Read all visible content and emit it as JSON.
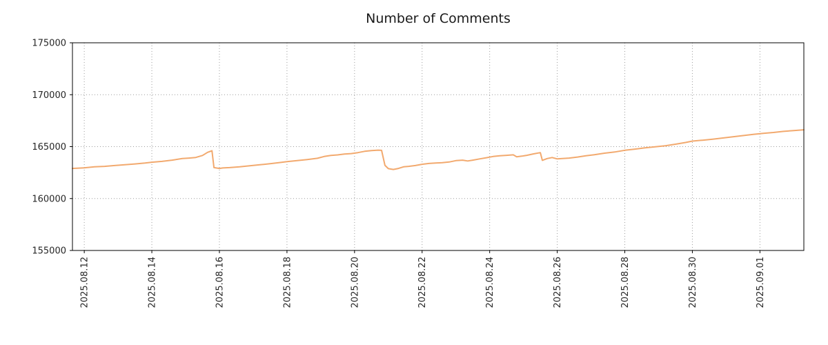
{
  "chart_data": {
    "type": "line",
    "title": "Number of Comments",
    "xlabel": "",
    "ylabel": "",
    "grid": true,
    "legend": "none",
    "line_color": "#f2a96e",
    "line_width": 2,
    "xlim": [
      -0.35,
      21.3
    ],
    "ylim": [
      155000,
      175000
    ],
    "y_ticks": [
      {
        "value": 155000,
        "label": "155000"
      },
      {
        "value": 160000,
        "label": "160000"
      },
      {
        "value": 165000,
        "label": "165000"
      },
      {
        "value": 170000,
        "label": "170000"
      },
      {
        "value": 175000,
        "label": "175000"
      }
    ],
    "x_ticks": [
      {
        "pos": 0,
        "label": "2025.08.12"
      },
      {
        "pos": 2,
        "label": "2025.08.14"
      },
      {
        "pos": 4,
        "label": "2025.08.16"
      },
      {
        "pos": 6,
        "label": "2025.08.18"
      },
      {
        "pos": 8,
        "label": "2025.08.20"
      },
      {
        "pos": 10,
        "label": "2025.08.22"
      },
      {
        "pos": 12,
        "label": "2025.08.24"
      },
      {
        "pos": 14,
        "label": "2025.08.26"
      },
      {
        "pos": 16,
        "label": "2025.08.28"
      },
      {
        "pos": 18,
        "label": "2025.08.30"
      },
      {
        "pos": 20,
        "label": "2025.09.01"
      }
    ],
    "series": [
      {
        "name": "comments",
        "points": [
          [
            -0.35,
            162900
          ],
          [
            0,
            162960
          ],
          [
            0.3,
            163050
          ],
          [
            0.6,
            163100
          ],
          [
            0.9,
            163180
          ],
          [
            1.2,
            163250
          ],
          [
            1.5,
            163330
          ],
          [
            1.8,
            163420
          ],
          [
            2.0,
            163500
          ],
          [
            2.3,
            163580
          ],
          [
            2.6,
            163700
          ],
          [
            2.9,
            163850
          ],
          [
            3.1,
            163900
          ],
          [
            3.3,
            163960
          ],
          [
            3.5,
            164150
          ],
          [
            3.65,
            164450
          ],
          [
            3.78,
            164600
          ],
          [
            3.84,
            162980
          ],
          [
            4.0,
            162900
          ],
          [
            4.1,
            162950
          ],
          [
            4.3,
            162980
          ],
          [
            4.6,
            163050
          ],
          [
            4.9,
            163150
          ],
          [
            5.2,
            163250
          ],
          [
            5.5,
            163350
          ],
          [
            5.8,
            163470
          ],
          [
            6.0,
            163550
          ],
          [
            6.3,
            163650
          ],
          [
            6.6,
            163760
          ],
          [
            6.9,
            163880
          ],
          [
            7.1,
            164050
          ],
          [
            7.3,
            164150
          ],
          [
            7.5,
            164200
          ],
          [
            7.7,
            164280
          ],
          [
            7.9,
            164330
          ],
          [
            8.1,
            164420
          ],
          [
            8.3,
            164550
          ],
          [
            8.5,
            164620
          ],
          [
            8.7,
            164660
          ],
          [
            8.8,
            164640
          ],
          [
            8.9,
            163200
          ],
          [
            9.0,
            162880
          ],
          [
            9.15,
            162800
          ],
          [
            9.3,
            162900
          ],
          [
            9.45,
            163050
          ],
          [
            9.6,
            163100
          ],
          [
            9.8,
            163180
          ],
          [
            10.0,
            163300
          ],
          [
            10.2,
            163380
          ],
          [
            10.4,
            163420
          ],
          [
            10.6,
            163450
          ],
          [
            10.8,
            163520
          ],
          [
            11.0,
            163650
          ],
          [
            11.2,
            163700
          ],
          [
            11.35,
            163620
          ],
          [
            11.5,
            163700
          ],
          [
            11.7,
            163820
          ],
          [
            11.9,
            163930
          ],
          [
            12.1,
            164050
          ],
          [
            12.3,
            164120
          ],
          [
            12.5,
            164160
          ],
          [
            12.7,
            164210
          ],
          [
            12.8,
            164020
          ],
          [
            12.95,
            164080
          ],
          [
            13.1,
            164160
          ],
          [
            13.3,
            164300
          ],
          [
            13.5,
            164420
          ],
          [
            13.56,
            163680
          ],
          [
            13.7,
            163850
          ],
          [
            13.85,
            163950
          ],
          [
            14.0,
            163820
          ],
          [
            14.15,
            163850
          ],
          [
            14.35,
            163900
          ],
          [
            14.6,
            164000
          ],
          [
            14.85,
            164120
          ],
          [
            15.1,
            164220
          ],
          [
            15.4,
            164370
          ],
          [
            15.7,
            164480
          ],
          [
            16.0,
            164650
          ],
          [
            16.3,
            164760
          ],
          [
            16.6,
            164880
          ],
          [
            16.9,
            164980
          ],
          [
            17.2,
            165080
          ],
          [
            17.5,
            165230
          ],
          [
            17.8,
            165400
          ],
          [
            18.0,
            165530
          ],
          [
            18.3,
            165620
          ],
          [
            18.6,
            165720
          ],
          [
            18.9,
            165830
          ],
          [
            19.2,
            165950
          ],
          [
            19.5,
            166060
          ],
          [
            19.8,
            166180
          ],
          [
            20.1,
            166280
          ],
          [
            20.4,
            166360
          ],
          [
            20.7,
            166470
          ],
          [
            21.0,
            166550
          ],
          [
            21.3,
            166620
          ]
        ]
      }
    ]
  }
}
